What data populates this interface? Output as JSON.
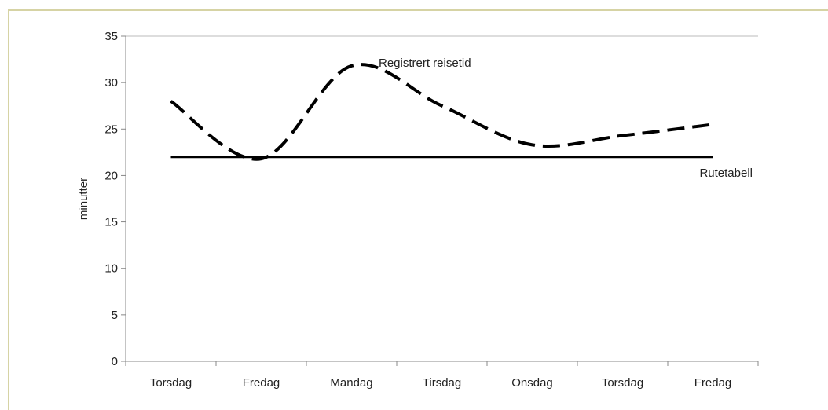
{
  "chart_data": {
    "type": "line",
    "title": "",
    "xlabel": "",
    "ylabel": "minutter",
    "ylim": [
      0,
      35
    ],
    "yticks": [
      0,
      5,
      10,
      15,
      20,
      25,
      30,
      35
    ],
    "grid": false,
    "categories": [
      "Torsdag",
      "Fredag",
      "Mandag",
      "Tirsdag",
      "Onsdag",
      "Torsdag",
      "Fredag"
    ],
    "series": [
      {
        "name": "Registrert reisetid",
        "style": "dashed",
        "color": "#000000",
        "values": [
          28,
          21.8,
          31.8,
          27.5,
          23.3,
          24.3,
          25.5
        ]
      },
      {
        "name": "Rutetabell",
        "style": "solid",
        "color": "#000000",
        "values": [
          22,
          22,
          22,
          22,
          22,
          22,
          22
        ]
      }
    ],
    "annotations": [
      {
        "text": "Registrert reisetid",
        "series": 0
      },
      {
        "text": "Rutetabell",
        "series": 1
      }
    ]
  },
  "colors": {
    "frame": "#d6d3a4",
    "axis": "#888888",
    "line": "#000000"
  }
}
